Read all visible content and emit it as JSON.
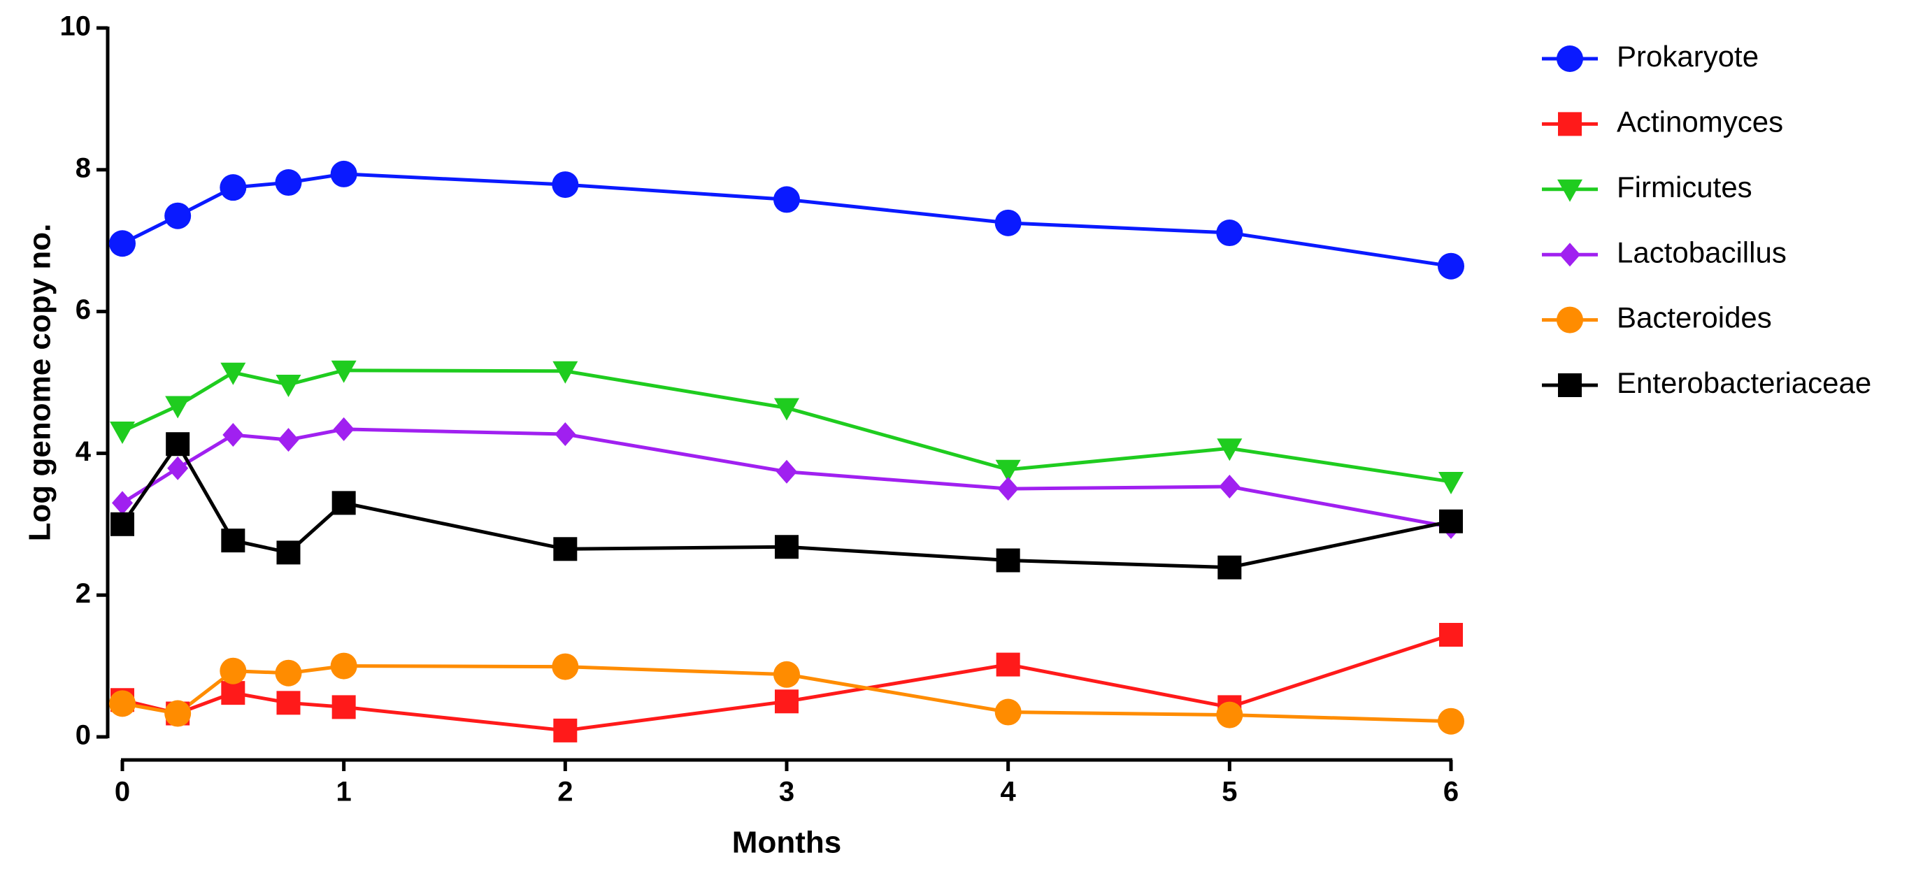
{
  "chart_data": {
    "type": "line",
    "xlabel": "Months",
    "ylabel": "Log genome copy no.",
    "x": [
      0,
      0.25,
      0.5,
      0.75,
      1,
      2,
      3,
      4,
      5,
      6
    ],
    "xlim": [
      0,
      6
    ],
    "xticks": [
      0,
      1,
      2,
      3,
      4,
      5,
      6
    ],
    "ylim": [
      0,
      10
    ],
    "yticks": [
      0,
      2,
      4,
      6,
      8,
      10
    ],
    "legend": "right",
    "series": [
      {
        "name": "Prokaryote",
        "color": "#0a1aff",
        "marker": "circle",
        "values": [
          6.96,
          7.35,
          7.75,
          7.82,
          7.94,
          7.79,
          7.58,
          7.25,
          7.11,
          6.64
        ]
      },
      {
        "name": "Actinomyces",
        "color": "#ff1a1a",
        "marker": "square",
        "values": [
          0.52,
          0.33,
          0.62,
          0.48,
          0.42,
          0.09,
          0.5,
          1.02,
          0.42,
          1.44
        ]
      },
      {
        "name": "Firmicutes",
        "color": "#1fcc1f",
        "marker": "triangle-down",
        "values": [
          4.31,
          4.67,
          5.14,
          4.97,
          5.17,
          5.16,
          4.64,
          3.77,
          4.07,
          3.6
        ]
      },
      {
        "name": "Lactobacillus",
        "color": "#a020f0",
        "marker": "diamond",
        "values": [
          3.3,
          3.79,
          4.26,
          4.19,
          4.34,
          4.27,
          3.74,
          3.5,
          3.53,
          2.96
        ]
      },
      {
        "name": "Bacteroides",
        "color": "#ff8c00",
        "marker": "circle",
        "values": [
          0.47,
          0.33,
          0.93,
          0.9,
          1.0,
          0.99,
          0.88,
          0.35,
          0.31,
          0.22
        ]
      },
      {
        "name": "Enterobacteriaceae",
        "color": "#000000",
        "marker": "square",
        "values": [
          3.0,
          4.13,
          2.77,
          2.6,
          3.3,
          2.65,
          2.68,
          2.49,
          2.39,
          3.04
        ]
      }
    ]
  }
}
